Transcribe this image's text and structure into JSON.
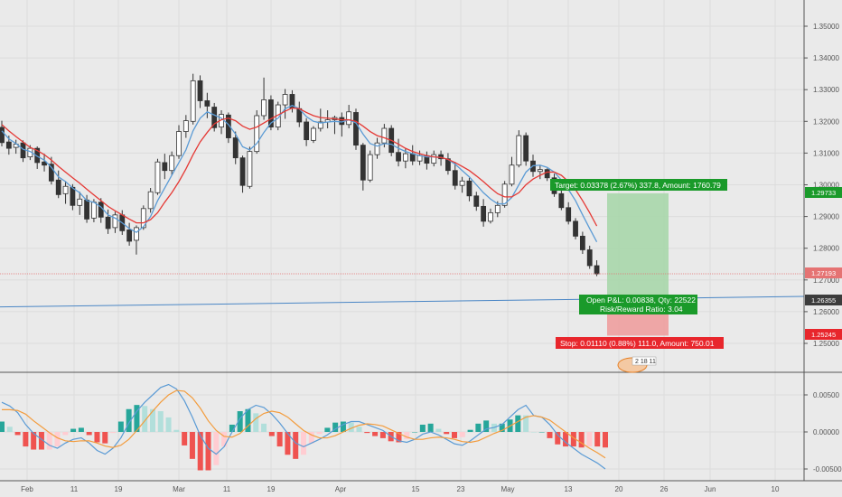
{
  "chart_data": {
    "type": "candlestick",
    "price_axis": {
      "ticks": [
        "1.35000",
        "1.34000",
        "1.33000",
        "1.32000",
        "1.31000",
        "1.30000",
        "1.29000",
        "1.28000",
        "1.27000",
        "1.26000",
        "1.25000"
      ],
      "ylim": [
        1.2415,
        1.3584
      ]
    },
    "x_axis": {
      "ticks": [
        "Feb",
        "11",
        "19",
        "Mar",
        "11",
        "19",
        "Apr",
        "15",
        "23",
        "May",
        "13",
        "20",
        "26",
        "Jun",
        "10"
      ]
    },
    "price_badges": {
      "target": "1.29733",
      "current": "1.27193",
      "entry": "1.26355",
      "stop": "1.25245"
    },
    "position": {
      "target_text": "Target: 0.03378 (2.67%) 337.8, Amount: 1760.79",
      "pnl_text": "Open P&L: 0.00838, Qty: 22522",
      "ratio_text": "Risk/Reward Ratio: 3.04",
      "stop_text": "Stop: 0.01110 (0.88%) 111.0, Amount: 750.01",
      "entry": 1.26355,
      "target": 1.29733,
      "stop": 1.25245
    },
    "event_badge": "2 18 11",
    "candles": [
      [
        1.3181,
        1.3202,
        1.3121,
        1.3133
      ],
      [
        1.3135,
        1.3155,
        1.3095,
        1.3115
      ],
      [
        1.3118,
        1.3142,
        1.3098,
        1.3128
      ],
      [
        1.3132,
        1.314,
        1.3072,
        1.3085
      ],
      [
        1.3088,
        1.3125,
        1.3078,
        1.3115
      ],
      [
        1.3115,
        1.3121,
        1.305,
        1.307
      ],
      [
        1.3072,
        1.3098,
        1.3042,
        1.3062
      ],
      [
        1.3065,
        1.3088,
        1.3001,
        1.3012
      ],
      [
        1.3015,
        1.3045,
        1.2958,
        1.2969
      ],
      [
        1.2972,
        1.3012,
        1.294,
        1.2995
      ],
      [
        1.2992,
        1.3002,
        1.292,
        1.2935
      ],
      [
        1.2935,
        1.2978,
        1.2905,
        1.2955
      ],
      [
        1.2952,
        1.2968,
        1.288,
        1.2892
      ],
      [
        1.2895,
        1.2955,
        1.2882,
        1.2945
      ],
      [
        1.2945,
        1.2958,
        1.288,
        1.2898
      ],
      [
        1.2898,
        1.2922,
        1.2845,
        1.2862
      ],
      [
        1.2865,
        1.2915,
        1.2848,
        1.2905
      ],
      [
        1.2905,
        1.292,
        1.2842,
        1.2855
      ],
      [
        1.2858,
        1.288,
        1.2808,
        1.2822
      ],
      [
        1.2825,
        1.2872,
        1.278,
        1.2865
      ],
      [
        1.2865,
        1.2935,
        1.2858,
        1.2925
      ],
      [
        1.2925,
        1.299,
        1.2912,
        1.2978
      ],
      [
        1.2975,
        1.3082,
        1.2968,
        1.3072
      ],
      [
        1.307,
        1.3098,
        1.3018,
        1.3045
      ],
      [
        1.3045,
        1.3105,
        1.303,
        1.3092
      ],
      [
        1.3092,
        1.3188,
        1.3082,
        1.3168
      ],
      [
        1.3168,
        1.322,
        1.3148,
        1.3202
      ],
      [
        1.32,
        1.335,
        1.319,
        1.3328
      ],
      [
        1.3328,
        1.3345,
        1.3242,
        1.3265
      ],
      [
        1.3265,
        1.329,
        1.321,
        1.3248
      ],
      [
        1.3245,
        1.3258,
        1.3168,
        1.318
      ],
      [
        1.3182,
        1.3235,
        1.316,
        1.3222
      ],
      [
        1.322,
        1.3228,
        1.3132,
        1.3148
      ],
      [
        1.3148,
        1.3168,
        1.3065,
        1.3085
      ],
      [
        1.3085,
        1.3092,
        1.2975,
        1.2998
      ],
      [
        1.2995,
        1.312,
        1.2988,
        1.3105
      ],
      [
        1.3105,
        1.3235,
        1.3098,
        1.3218
      ],
      [
        1.3218,
        1.3338,
        1.3205,
        1.3268
      ],
      [
        1.3268,
        1.3282,
        1.3172,
        1.3182
      ],
      [
        1.3182,
        1.3262,
        1.3172,
        1.3252
      ],
      [
        1.3252,
        1.3302,
        1.3208,
        1.3285
      ],
      [
        1.3285,
        1.3298,
        1.3228,
        1.3242
      ],
      [
        1.324,
        1.3262,
        1.3182,
        1.3198
      ],
      [
        1.3198,
        1.321,
        1.3122,
        1.3142
      ],
      [
        1.314,
        1.3185,
        1.3132,
        1.3178
      ],
      [
        1.3178,
        1.324,
        1.3168,
        1.3198
      ],
      [
        1.3198,
        1.3235,
        1.3178,
        1.3205
      ],
      [
        1.3205,
        1.3218,
        1.316,
        1.3212
      ],
      [
        1.3212,
        1.3228,
        1.3152,
        1.319
      ],
      [
        1.319,
        1.3252,
        1.3178,
        1.323
      ],
      [
        1.3228,
        1.324,
        1.311,
        1.3125
      ],
      [
        1.3125,
        1.3132,
        1.2982,
        1.3015
      ],
      [
        1.3015,
        1.3108,
        1.3008,
        1.3095
      ],
      [
        1.3095,
        1.3148,
        1.3082,
        1.3132
      ],
      [
        1.3132,
        1.3192,
        1.3118,
        1.3178
      ],
      [
        1.3178,
        1.3188,
        1.309,
        1.3102
      ],
      [
        1.3102,
        1.3145,
        1.3058,
        1.3075
      ],
      [
        1.3075,
        1.3115,
        1.3052,
        1.3098
      ],
      [
        1.3098,
        1.3125,
        1.3062,
        1.3075
      ],
      [
        1.3075,
        1.3108,
        1.3062,
        1.3092
      ],
      [
        1.3092,
        1.3105,
        1.3048,
        1.3068
      ],
      [
        1.3068,
        1.3108,
        1.3058,
        1.3095
      ],
      [
        1.3095,
        1.3108,
        1.306,
        1.3082
      ],
      [
        1.3082,
        1.31,
        1.3032,
        1.3045
      ],
      [
        1.3045,
        1.3072,
        1.2985,
        1.2998
      ],
      [
        1.2998,
        1.3025,
        1.2975,
        1.3012
      ],
      [
        1.3012,
        1.3022,
        1.2948,
        1.2965
      ],
      [
        1.2965,
        1.2978,
        1.2918,
        1.2932
      ],
      [
        1.2932,
        1.2955,
        1.2868,
        1.2885
      ],
      [
        1.2885,
        1.2925,
        1.2878,
        1.2912
      ],
      [
        1.2912,
        1.2948,
        1.2898,
        1.2935
      ],
      [
        1.2935,
        1.3012,
        1.2928,
        1.3002
      ],
      [
        1.3002,
        1.3088,
        1.2995,
        1.3062
      ],
      [
        1.3062,
        1.3172,
        1.3055,
        1.3155
      ],
      [
        1.3155,
        1.3165,
        1.306,
        1.3075
      ],
      [
        1.3075,
        1.3095,
        1.3025,
        1.3042
      ],
      [
        1.3042,
        1.306,
        1.3018,
        1.3048
      ],
      [
        1.3048,
        1.3052,
        1.3012,
        1.3022
      ],
      [
        1.3022,
        1.3035,
        1.2962,
        1.2972
      ],
      [
        1.2972,
        1.2985,
        1.292,
        1.2928
      ],
      [
        1.2928,
        1.2945,
        1.2875,
        1.2885
      ],
      [
        1.2885,
        1.2895,
        1.2828,
        1.2838
      ],
      [
        1.2838,
        1.2852,
        1.2782,
        1.2795
      ],
      [
        1.2795,
        1.2808,
        1.2735,
        1.2745
      ],
      [
        1.2745,
        1.2762,
        1.2712,
        1.2719
      ]
    ],
    "ma_red": [
      1.319,
      1.317,
      1.3152,
      1.3135,
      1.3118,
      1.3108,
      1.3095,
      1.3078,
      1.3058,
      1.304,
      1.3022,
      1.3005,
      1.2986,
      1.2968,
      1.295,
      1.2932,
      1.2918,
      1.2905,
      1.2892,
      1.288,
      1.288,
      1.289,
      1.2912,
      1.2945,
      1.2975,
      1.301,
      1.305,
      1.3095,
      1.3135,
      1.3165,
      1.3192,
      1.3205,
      1.321,
      1.3202,
      1.3185,
      1.3175,
      1.3182,
      1.3195,
      1.3208,
      1.322,
      1.3232,
      1.3242,
      1.324,
      1.3228,
      1.3218,
      1.3212,
      1.321,
      1.3208,
      1.3205,
      1.3205,
      1.32,
      1.3185,
      1.3168,
      1.3155,
      1.3148,
      1.314,
      1.3128,
      1.3115,
      1.3105,
      1.3098,
      1.3092,
      1.3088,
      1.3086,
      1.308,
      1.307,
      1.3058,
      1.3045,
      1.3028,
      1.301,
      1.299,
      1.2972,
      1.2962,
      1.2962,
      1.2975,
      1.3,
      1.3018,
      1.303,
      1.304,
      1.304,
      1.303,
      1.301,
      1.2985,
      1.295,
      1.2912,
      1.287
    ],
    "ma_blue": [
      1.317,
      1.3145,
      1.313,
      1.3112,
      1.3105,
      1.309,
      1.3078,
      1.3055,
      1.3025,
      1.301,
      1.299,
      1.2975,
      1.295,
      1.2945,
      1.293,
      1.2905,
      1.2895,
      1.288,
      1.2862,
      1.285,
      1.2868,
      1.29,
      1.295,
      1.299,
      1.303,
      1.307,
      1.311,
      1.317,
      1.321,
      1.323,
      1.322,
      1.321,
      1.319,
      1.316,
      1.312,
      1.311,
      1.313,
      1.3165,
      1.3195,
      1.321,
      1.324,
      1.325,
      1.324,
      1.3215,
      1.32,
      1.3195,
      1.3198,
      1.32,
      1.3198,
      1.3205,
      1.3195,
      1.316,
      1.313,
      1.3122,
      1.313,
      1.3128,
      1.3115,
      1.3105,
      1.3098,
      1.3092,
      1.3088,
      1.3088,
      1.3086,
      1.308,
      1.3065,
      1.3045,
      1.3025,
      1.3,
      1.2975,
      1.2955,
      1.294,
      1.294,
      1.296,
      1.3,
      1.304,
      1.306,
      1.3062,
      1.3055,
      1.304,
      1.3015,
      1.2985,
      1.295,
      1.2905,
      1.2862,
      1.282
    ],
    "trendline": {
      "start": 1.2615,
      "end": 1.2648
    },
    "indicator": {
      "ticks": [
        "0.00500",
        "0.00000",
        "-0.00500"
      ],
      "ylim": [
        -0.006,
        0.0075
      ],
      "macd": [
        0.004,
        0.0035,
        0.0026,
        0.001,
        -0.0002,
        -0.001,
        -0.0018,
        -0.0022,
        -0.0015,
        -0.001,
        -0.0008,
        -0.0015,
        -0.0025,
        -0.003,
        -0.0022,
        -0.0008,
        0.0012,
        0.0028,
        0.004,
        0.005,
        0.006,
        0.0064,
        0.0058,
        0.0042,
        0.002,
        -0.0005,
        -0.0022,
        -0.003,
        -0.002,
        0.0,
        0.0018,
        0.003,
        0.0036,
        0.0033,
        0.0024,
        0.0012,
        -0.0002,
        -0.0015,
        -0.002,
        -0.0015,
        -0.001,
        -0.0004,
        0.0004,
        0.001,
        0.0014,
        0.0014,
        0.001,
        0.0006,
        0.0002,
        -0.0006,
        -0.0012,
        -0.0014,
        -0.001,
        -0.0003,
        0.0,
        -0.0004,
        -0.001,
        -0.0016,
        -0.0018,
        -0.0012,
        -0.0004,
        0.0004,
        0.0006,
        0.001,
        0.002,
        0.003,
        0.0036,
        0.0022,
        0.002,
        0.001,
        -0.0004,
        -0.0014,
        -0.0022,
        -0.003,
        -0.0036,
        -0.0042,
        -0.005
      ],
      "signal": [
        0.003,
        0.003,
        0.0029,
        0.0024,
        0.0015,
        0.0007,
        -0.0001,
        -0.0008,
        -0.0012,
        -0.0013,
        -0.0012,
        -0.0012,
        -0.0015,
        -0.0019,
        -0.0021,
        -0.0018,
        -0.001,
        0.0002,
        0.0015,
        0.0028,
        0.004,
        0.005,
        0.0056,
        0.0055,
        0.0046,
        0.0032,
        0.0015,
        0.0002,
        -0.0006,
        -0.0007,
        -0.0002,
        0.0008,
        0.0018,
        0.0025,
        0.0028,
        0.0026,
        0.002,
        0.0011,
        0.0002,
        -0.0004,
        -0.0008,
        -0.0008,
        -0.0005,
        0.0,
        0.0005,
        0.0009,
        0.0011,
        0.001,
        0.0008,
        0.0003,
        -0.0002,
        -0.0007,
        -0.001,
        -0.001,
        -0.0008,
        -0.0007,
        -0.0008,
        -0.001,
        -0.0013,
        -0.0014,
        -0.0012,
        -0.0007,
        -0.0002,
        0.0002,
        0.0008,
        0.0014,
        0.002,
        0.0022,
        0.002,
        0.0016,
        0.0008,
        0.0,
        -0.0008,
        -0.0015,
        -0.0022,
        -0.0028,
        -0.0035
      ]
    },
    "colors": {
      "up": "#26a69a",
      "down": "#ef5350",
      "ma_red": "#e53935",
      "ma_blue": "#5b9bd5",
      "signal": "#f39c3d",
      "trend": "#4a86c5",
      "target_zone": "#a5d6a7",
      "stop_zone": "#ef9a9a",
      "target_badge": "#1a9a2a",
      "stop_badge": "#e8262c",
      "current_line": "#e57373"
    }
  }
}
